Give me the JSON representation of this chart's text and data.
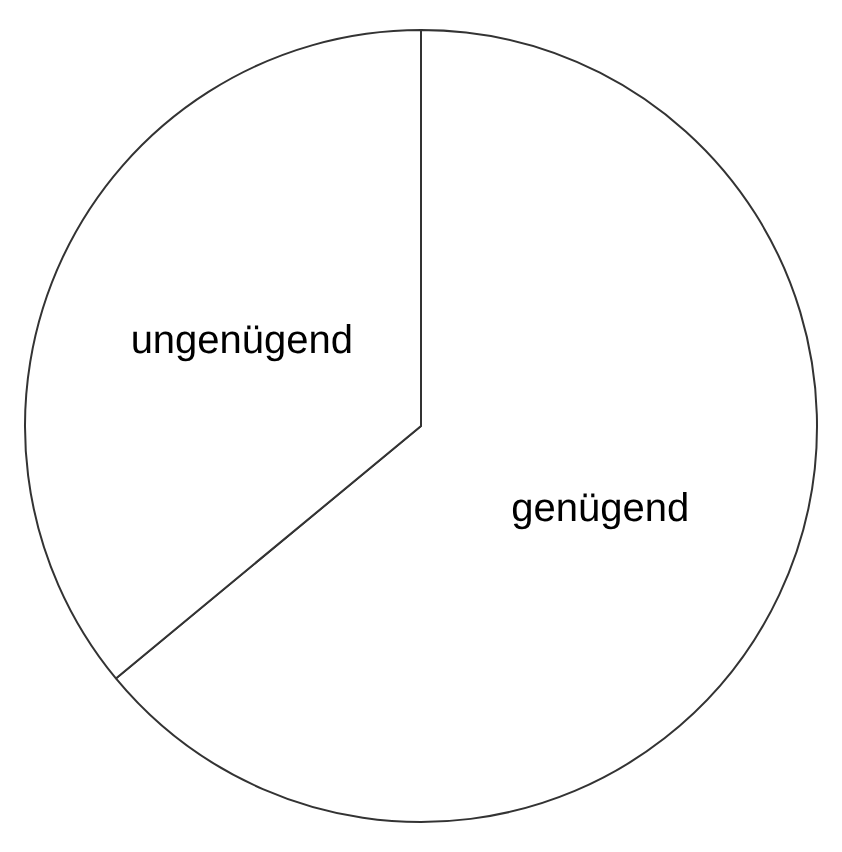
{
  "chart_data": {
    "type": "pie",
    "categories": [
      "genügend",
      "ungenügend"
    ],
    "values": [
      64,
      36
    ],
    "colors": [
      "#ffffff",
      "#ffffff"
    ],
    "legend": false
  }
}
